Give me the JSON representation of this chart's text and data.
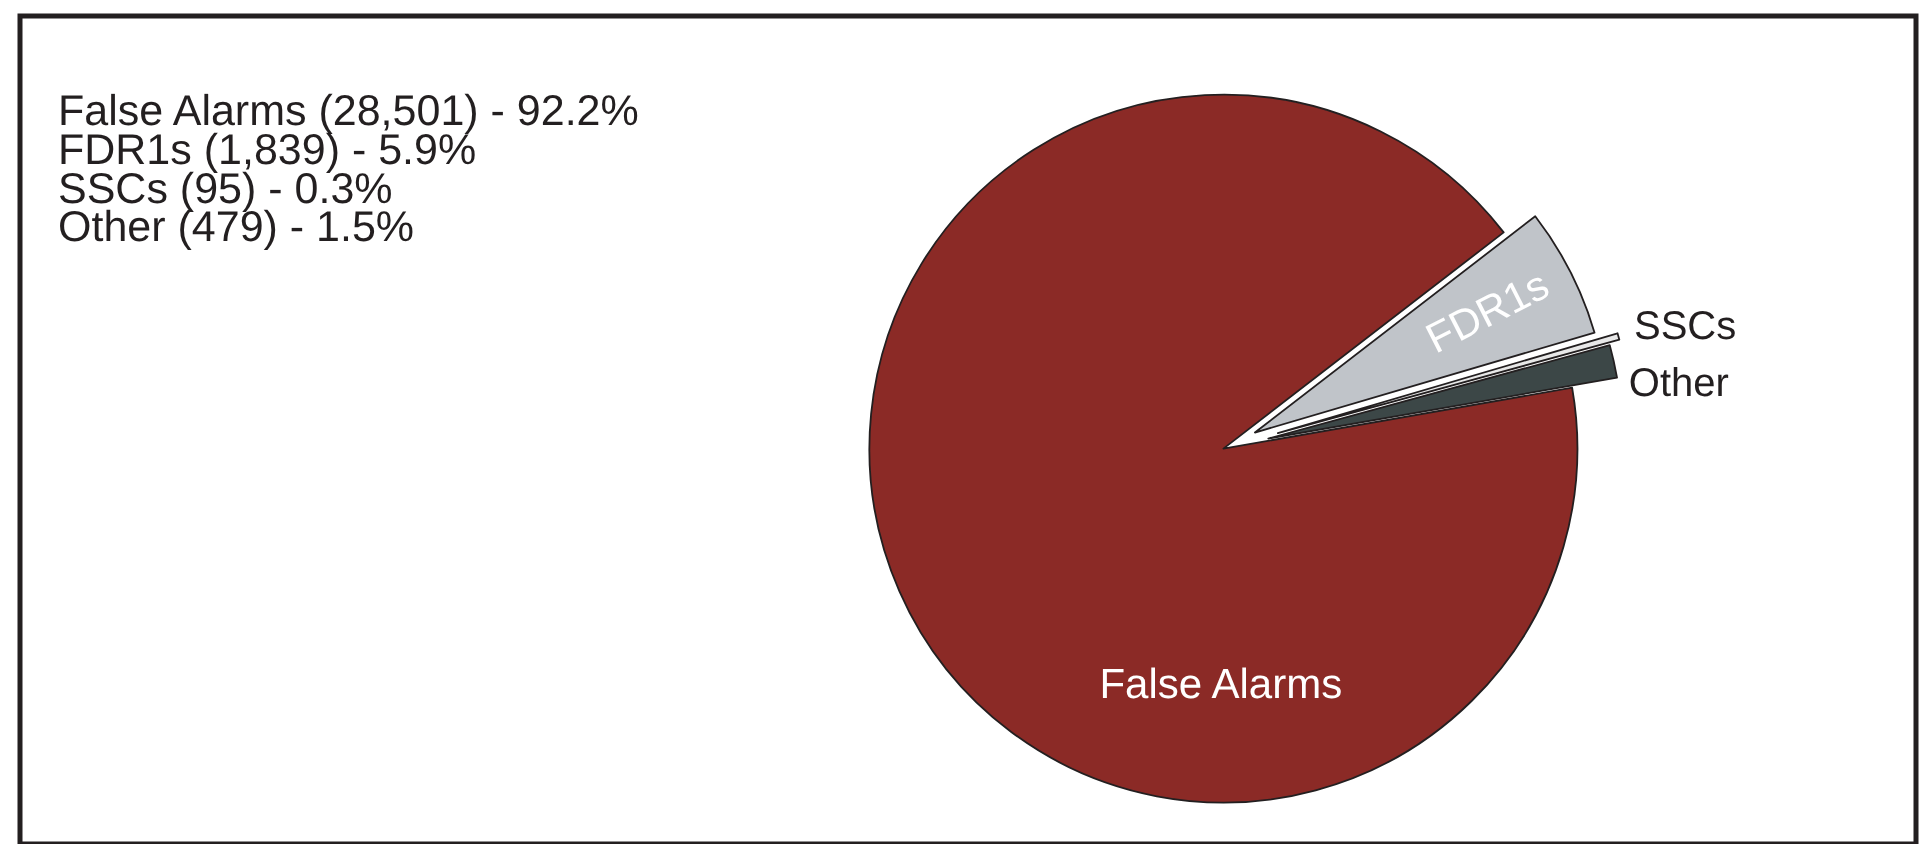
{
  "chart_data": {
    "type": "pie",
    "categories": [
      "False Alarms",
      "FDR1s",
      "SSCs",
      "Other"
    ],
    "values": [
      92.2,
      5.9,
      0.3,
      1.5
    ],
    "colors": [
      "#8b2a26",
      "#c0c4c9",
      "#e8e8e8",
      "#3c4747"
    ],
    "annotations": [
      "False Alarms (28,501) - 92.2%",
      "FDR1s (1,839) - 5.9%",
      "SSCs (95) - 0.3%",
      "Other (479) - 1.5%"
    ]
  }
}
